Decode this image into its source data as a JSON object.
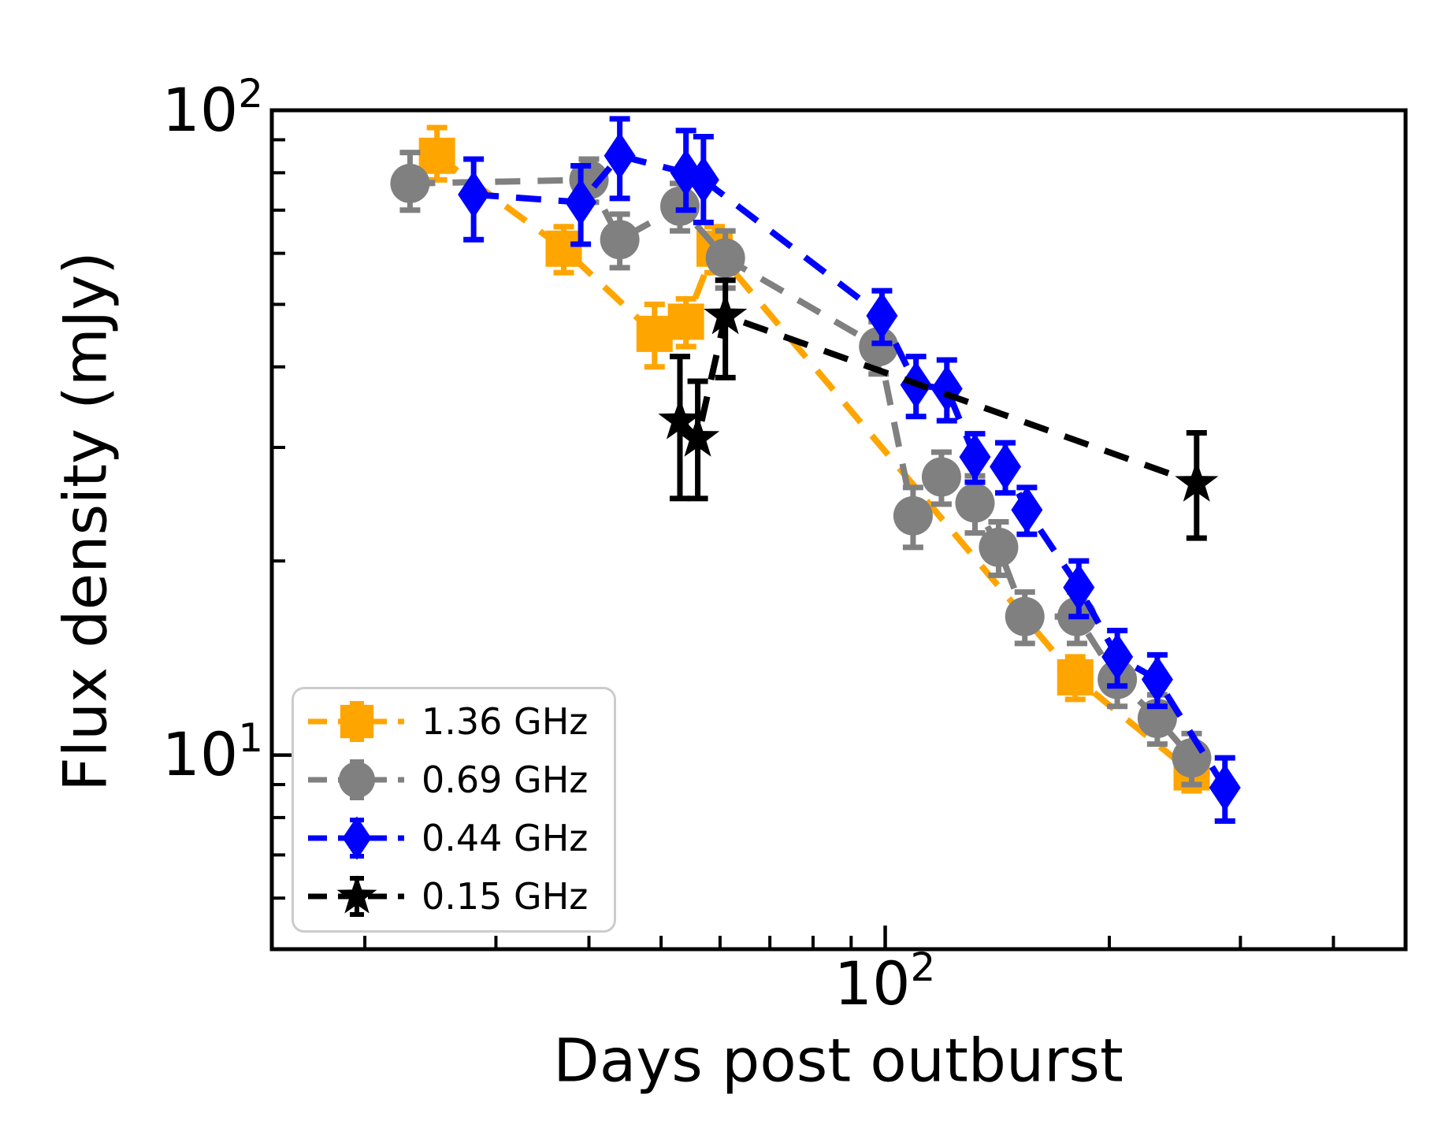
{
  "figure": {
    "background": "#ffffff",
    "xlabel": "Days post outburst",
    "ylabel": "Flux density (mJy)"
  },
  "axes": {
    "x": {
      "scale": "log",
      "min": 15,
      "max": 500,
      "major_ticks": [
        100
      ],
      "minor_ticks": [
        20,
        30,
        40,
        50,
        60,
        70,
        80,
        90,
        200,
        300,
        400
      ],
      "tick_labels": [
        {
          "base": "10",
          "exp": "2",
          "value": 100
        }
      ]
    },
    "y": {
      "scale": "log",
      "min": 5,
      "max": 100,
      "major_ticks": [
        10,
        100
      ],
      "minor_ticks": [
        6,
        7,
        8,
        9,
        20,
        30,
        40,
        50,
        60,
        70,
        80,
        90
      ],
      "tick_labels": [
        {
          "base": "10",
          "exp": "2",
          "value": 100
        },
        {
          "base": "10",
          "exp": "1",
          "value": 10
        }
      ]
    }
  },
  "legend": {
    "position": "lower-left",
    "items": [
      {
        "label": "1.36 GHz",
        "marker": "square",
        "color": "#FFA500"
      },
      {
        "label": "0.69 GHz",
        "marker": "circle",
        "color": "#808080"
      },
      {
        "label": "0.44 GHz",
        "marker": "diamond",
        "color": "#0000FF"
      },
      {
        "label": "0.15 GHz",
        "marker": "star",
        "color": "#000000"
      }
    ]
  },
  "chart_data": {
    "type": "line",
    "title": "",
    "xlabel": "Days post outburst",
    "ylabel": "Flux density (mJy)",
    "xscale": "log",
    "yscale": "log",
    "xlim": [
      15,
      500
    ],
    "ylim": [
      5,
      100
    ],
    "grid": false,
    "legend_position": "lower-left",
    "x_units": "days",
    "y_units": "mJy",
    "series": [
      {
        "name": "1.36 GHz",
        "color": "#FFA500",
        "marker": "square",
        "linestyle": "dashed",
        "points": [
          {
            "t": 25,
            "v": 85,
            "el": 7,
            "eu": 9
          },
          {
            "t": 37,
            "v": 61,
            "el": 5,
            "eu": 5
          },
          {
            "t": 49,
            "v": 45,
            "el": 5,
            "eu": 5
          },
          {
            "t": 54,
            "v": 47,
            "el": 4,
            "eu": 4
          },
          {
            "t": 59,
            "v": 61,
            "el": 5,
            "eu": 5
          },
          {
            "t": 180,
            "v": 13.2,
            "el": 1,
            "eu": 1
          },
          {
            "t": 258,
            "v": 9.4,
            "el": 0.6,
            "eu": 0.6
          }
        ]
      },
      {
        "name": "0.69 GHz",
        "color": "#808080",
        "marker": "circle",
        "linestyle": "dashed",
        "points": [
          {
            "t": 23,
            "v": 77,
            "el": 7,
            "eu": 9
          },
          {
            "t": 40,
            "v": 78,
            "el": 6,
            "eu": 6
          },
          {
            "t": 44,
            "v": 63,
            "el": 6,
            "eu": 6
          },
          {
            "t": 53,
            "v": 71,
            "el": 6,
            "eu": 6
          },
          {
            "t": 61,
            "v": 59,
            "el": 6,
            "eu": 6
          },
          {
            "t": 98,
            "v": 43,
            "el": 4,
            "eu": 4
          },
          {
            "t": 109,
            "v": 23.5,
            "el": 2.5,
            "eu": 2.5
          },
          {
            "t": 119,
            "v": 27,
            "el": 2.5,
            "eu": 2.5
          },
          {
            "t": 132,
            "v": 24.6,
            "el": 2.5,
            "eu": 2.5
          },
          {
            "t": 142,
            "v": 21,
            "el": 2,
            "eu": 2
          },
          {
            "t": 154,
            "v": 16.4,
            "el": 1.5,
            "eu": 1.5
          },
          {
            "t": 181,
            "v": 16.4,
            "el": 1.5,
            "eu": 1.5
          },
          {
            "t": 205,
            "v": 13.1,
            "el": 1.2,
            "eu": 1.2
          },
          {
            "t": 232,
            "v": 11.4,
            "el": 1,
            "eu": 1
          },
          {
            "t": 258,
            "v": 9.9,
            "el": 0.9,
            "eu": 0.9
          }
        ]
      },
      {
        "name": "0.44 GHz",
        "color": "#0000FF",
        "marker": "diamond",
        "linestyle": "dashed",
        "points": [
          {
            "t": 28,
            "v": 74,
            "el": 11,
            "eu": 10
          },
          {
            "t": 39,
            "v": 72,
            "el": 10,
            "eu": 10
          },
          {
            "t": 44,
            "v": 85,
            "el": 12,
            "eu": 12
          },
          {
            "t": 54,
            "v": 80,
            "el": 10,
            "eu": 13
          },
          {
            "t": 57,
            "v": 78,
            "el": 11,
            "eu": 13
          },
          {
            "t": 99,
            "v": 48,
            "el": 4.5,
            "eu": 4.5
          },
          {
            "t": 110,
            "v": 37.5,
            "el": 4,
            "eu": 4
          },
          {
            "t": 121,
            "v": 37,
            "el": 4,
            "eu": 4
          },
          {
            "t": 132,
            "v": 29,
            "el": 2.5,
            "eu": 2.5
          },
          {
            "t": 145,
            "v": 28,
            "el": 2.5,
            "eu": 2.5
          },
          {
            "t": 155,
            "v": 24,
            "el": 2,
            "eu": 2
          },
          {
            "t": 182,
            "v": 18.2,
            "el": 1.8,
            "eu": 1.8
          },
          {
            "t": 205,
            "v": 14.2,
            "el": 1.4,
            "eu": 1.4
          },
          {
            "t": 232,
            "v": 13.1,
            "el": 1.2,
            "eu": 1.2
          },
          {
            "t": 286,
            "v": 8.9,
            "el": 1,
            "eu": 1
          }
        ]
      },
      {
        "name": "0.15 GHz",
        "color": "#000000",
        "marker": "star",
        "linestyle": "dashed",
        "points": [
          {
            "t": 53,
            "v": 33,
            "el": 8,
            "eu": 8.5
          },
          {
            "t": 56,
            "v": 31,
            "el": 6,
            "eu": 7
          },
          {
            "t": 61,
            "v": 48,
            "el": 9.5,
            "eu": 6.5
          },
          {
            "t": 262,
            "v": 26.4,
            "el": 4.7,
            "eu": 5.2
          }
        ]
      }
    ]
  }
}
